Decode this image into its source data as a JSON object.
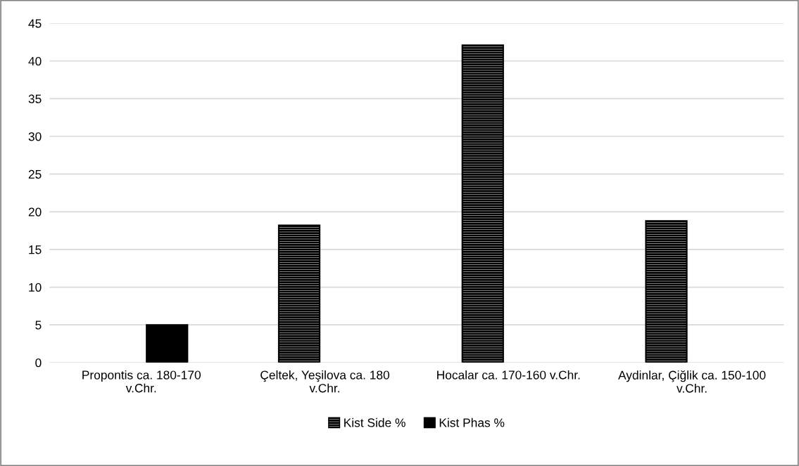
{
  "chart_data": {
    "type": "bar",
    "categories": [
      "Propontis ca. 180-170\nv.Chr.",
      "Çeltek, Yeşilova ca. 180\nv.Chr.",
      "Hocalar ca. 170-160 v.Chr.",
      "Aydinlar, Çiğlik ca. 150-100\nv.Chr."
    ],
    "series": [
      {
        "name": "Kist Side %",
        "color": "#000000",
        "values": [
          null,
          18.2,
          42.1,
          18.8
        ]
      },
      {
        "name": "Kist Phas %",
        "color": "#000000",
        "values": [
          5,
          null,
          null,
          null
        ]
      }
    ],
    "ylim": [
      0,
      45
    ],
    "yticks": [
      0,
      5,
      10,
      15,
      20,
      25,
      30,
      35,
      40,
      45
    ],
    "grid": "y",
    "legend": "bottom"
  }
}
